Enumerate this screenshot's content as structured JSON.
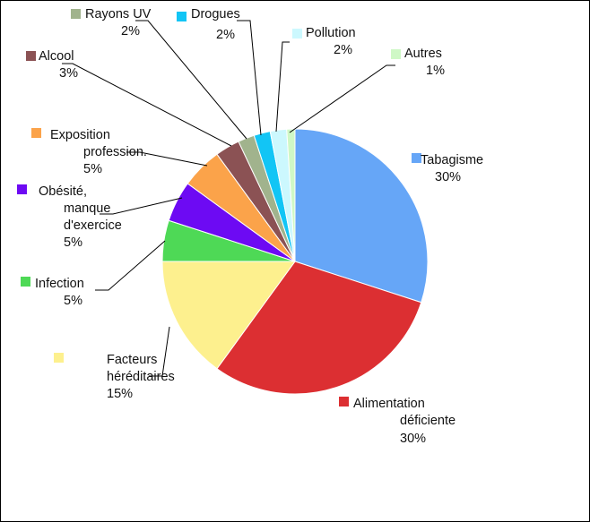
{
  "chart_data": {
    "type": "pie",
    "title": "",
    "legend": "labels beside slices with leader lines",
    "slices": [
      {
        "label": "Tabagisme",
        "value": 30,
        "percent_label": "30%",
        "color": "#66a6f7"
      },
      {
        "label": "Alimentation déficiente",
        "value": 30,
        "percent_label": "30%",
        "color": "#dc2f32"
      },
      {
        "label": "Facteurs héréditaires",
        "value": 15,
        "percent_label": "15%",
        "color": "#fdf08e"
      },
      {
        "label": "Infection",
        "value": 5,
        "percent_label": "5%",
        "color": "#4ed956"
      },
      {
        "label": "Obésité, manque d'exercice",
        "value": 5,
        "percent_label": "5%",
        "color": "#6d0af3"
      },
      {
        "label": "Exposition profession.",
        "value": 5,
        "percent_label": "5%",
        "color": "#fba34a"
      },
      {
        "label": "Alcool",
        "value": 3,
        "percent_label": "3%",
        "color": "#8b5254"
      },
      {
        "label": "Rayons UV",
        "value": 2,
        "percent_label": "2%",
        "color": "#a1b38d"
      },
      {
        "label": "Drogues",
        "value": 2,
        "percent_label": "2%",
        "color": "#12c5f5"
      },
      {
        "label": "Pollution",
        "value": 2,
        "percent_label": "2%",
        "color": "#ccf8fe"
      },
      {
        "label": "Autres",
        "value": 1,
        "percent_label": "1%",
        "color": "#cff8c6"
      }
    ]
  }
}
